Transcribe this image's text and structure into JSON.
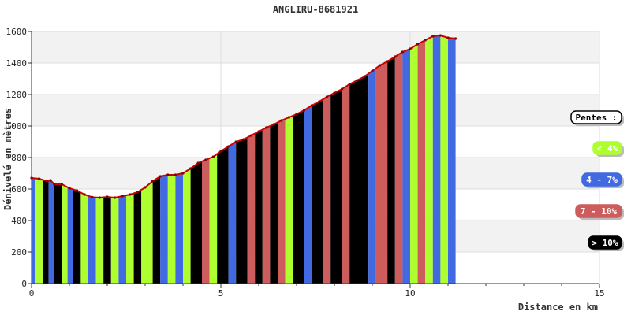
{
  "chart_data": {
    "type": "area",
    "title": "ANGLIRU-8681921",
    "xlabel": "Distance en km",
    "ylabel": "Dénivelé en mètres",
    "xlim": [
      0,
      15
    ],
    "ylim": [
      0,
      1600
    ],
    "x_ticks": [
      "0",
      "5",
      "10",
      "15"
    ],
    "y_ticks": [
      "0",
      "200",
      "400",
      "600",
      "800",
      "1000",
      "1200",
      "1400",
      "1600"
    ],
    "grid": true,
    "legend_position": "right",
    "legend": {
      "title": "Pentes :",
      "items": [
        {
          "label": "< 4%",
          "color": "#adff2f",
          "text_color": "#ffffff"
        },
        {
          "label": "4 - 7%",
          "color": "#4169e1",
          "text_color": "#ffffff"
        },
        {
          "label": "7 - 10%",
          "color": "#cd5c5c",
          "text_color": "#ffffff"
        },
        {
          "label": "> 10%",
          "color": "#000000",
          "text_color": "#ffffff"
        }
      ]
    },
    "colors": {
      "line": "#cc0000",
      "marker": "#8b0000",
      "grid_band": "#f2f2f2"
    },
    "series": [
      {
        "x": [
          0.0,
          0.2,
          0.4,
          0.5,
          0.6,
          0.8,
          1.0,
          1.2,
          1.4,
          1.6,
          1.8,
          2.0,
          2.2,
          2.4,
          2.6,
          2.8,
          3.0,
          3.2,
          3.4,
          3.6,
          3.8,
          4.0,
          4.2,
          4.4,
          4.6,
          4.8,
          5.0,
          5.2,
          5.4,
          5.6,
          5.8,
          6.0,
          6.2,
          6.4,
          6.6,
          6.8,
          7.0,
          7.2,
          7.4,
          7.6,
          7.8,
          8.0,
          8.2,
          8.4,
          8.6,
          8.8,
          9.0,
          9.2,
          9.4,
          9.6,
          9.8,
          10.0,
          10.2,
          10.4,
          10.6,
          10.8,
          11.0,
          11.2
        ],
        "y": [
          670,
          665,
          650,
          655,
          630,
          630,
          605,
          590,
          565,
          548,
          545,
          550,
          545,
          555,
          565,
          580,
          610,
          650,
          680,
          690,
          690,
          700,
          730,
          765,
          785,
          805,
          840,
          870,
          900,
          915,
          940,
          965,
          990,
          1010,
          1035,
          1055,
          1075,
          1100,
          1130,
          1155,
          1185,
          1210,
          1235,
          1265,
          1290,
          1315,
          1350,
          1385,
          1410,
          1440,
          1470,
          1490,
          1520,
          1545,
          1570,
          1575,
          1560,
          1555
        ]
      }
    ],
    "segments": [
      {
        "from": 0.0,
        "to": 0.1,
        "slope": "4 - 7%"
      },
      {
        "from": 0.1,
        "to": 0.3,
        "slope": "< 4%"
      },
      {
        "from": 0.3,
        "to": 0.45,
        "slope": "> 10%"
      },
      {
        "from": 0.45,
        "to": 0.6,
        "slope": "4 - 7%"
      },
      {
        "from": 0.6,
        "to": 0.8,
        "slope": "> 10%"
      },
      {
        "from": 0.8,
        "to": 0.95,
        "slope": "< 4%"
      },
      {
        "from": 0.95,
        "to": 1.1,
        "slope": "4 - 7%"
      },
      {
        "from": 1.1,
        "to": 1.3,
        "slope": "> 10%"
      },
      {
        "from": 1.3,
        "to": 1.5,
        "slope": "< 4%"
      },
      {
        "from": 1.5,
        "to": 1.7,
        "slope": "4 - 7%"
      },
      {
        "from": 1.7,
        "to": 1.9,
        "slope": "< 4%"
      },
      {
        "from": 1.9,
        "to": 2.1,
        "slope": "> 10%"
      },
      {
        "from": 2.1,
        "to": 2.3,
        "slope": "< 4%"
      },
      {
        "from": 2.3,
        "to": 2.5,
        "slope": "4 - 7%"
      },
      {
        "from": 2.5,
        "to": 2.7,
        "slope": "< 4%"
      },
      {
        "from": 2.7,
        "to": 2.9,
        "slope": "> 10%"
      },
      {
        "from": 2.9,
        "to": 3.2,
        "slope": "< 4%"
      },
      {
        "from": 3.2,
        "to": 3.4,
        "slope": "> 10%"
      },
      {
        "from": 3.4,
        "to": 3.6,
        "slope": "4 - 7%"
      },
      {
        "from": 3.6,
        "to": 3.8,
        "slope": "< 4%"
      },
      {
        "from": 3.8,
        "to": 4.0,
        "slope": "4 - 7%"
      },
      {
        "from": 4.0,
        "to": 4.2,
        "slope": "< 4%"
      },
      {
        "from": 4.2,
        "to": 4.5,
        "slope": "> 10%"
      },
      {
        "from": 4.5,
        "to": 4.7,
        "slope": "7 - 10%"
      },
      {
        "from": 4.7,
        "to": 4.9,
        "slope": "< 4%"
      },
      {
        "from": 4.9,
        "to": 5.2,
        "slope": "> 10%"
      },
      {
        "from": 5.2,
        "to": 5.4,
        "slope": "4 - 7%"
      },
      {
        "from": 5.4,
        "to": 5.7,
        "slope": "> 10%"
      },
      {
        "from": 5.7,
        "to": 5.9,
        "slope": "7 - 10%"
      },
      {
        "from": 5.9,
        "to": 6.1,
        "slope": "> 10%"
      },
      {
        "from": 6.1,
        "to": 6.3,
        "slope": "7 - 10%"
      },
      {
        "from": 6.3,
        "to": 6.5,
        "slope": "> 10%"
      },
      {
        "from": 6.5,
        "to": 6.7,
        "slope": "7 - 10%"
      },
      {
        "from": 6.7,
        "to": 6.9,
        "slope": "< 4%"
      },
      {
        "from": 6.9,
        "to": 7.2,
        "slope": "> 10%"
      },
      {
        "from": 7.2,
        "to": 7.4,
        "slope": "4 - 7%"
      },
      {
        "from": 7.4,
        "to": 7.7,
        "slope": "> 10%"
      },
      {
        "from": 7.7,
        "to": 7.9,
        "slope": "7 - 10%"
      },
      {
        "from": 7.9,
        "to": 8.2,
        "slope": "> 10%"
      },
      {
        "from": 8.2,
        "to": 8.4,
        "slope": "7 - 10%"
      },
      {
        "from": 8.4,
        "to": 8.9,
        "slope": "> 10%"
      },
      {
        "from": 8.9,
        "to": 9.1,
        "slope": "4 - 7%"
      },
      {
        "from": 9.1,
        "to": 9.4,
        "slope": "7 - 10%"
      },
      {
        "from": 9.4,
        "to": 9.6,
        "slope": "> 10%"
      },
      {
        "from": 9.6,
        "to": 9.8,
        "slope": "7 - 10%"
      },
      {
        "from": 9.8,
        "to": 10.0,
        "slope": "4 - 7%"
      },
      {
        "from": 10.0,
        "to": 10.2,
        "slope": "< 4%"
      },
      {
        "from": 10.2,
        "to": 10.4,
        "slope": "7 - 10%"
      },
      {
        "from": 10.4,
        "to": 10.6,
        "slope": "< 4%"
      },
      {
        "from": 10.6,
        "to": 10.8,
        "slope": "4 - 7%"
      },
      {
        "from": 10.8,
        "to": 11.0,
        "slope": "< 4%"
      },
      {
        "from": 11.0,
        "to": 11.2,
        "slope": "4 - 7%"
      }
    ]
  }
}
